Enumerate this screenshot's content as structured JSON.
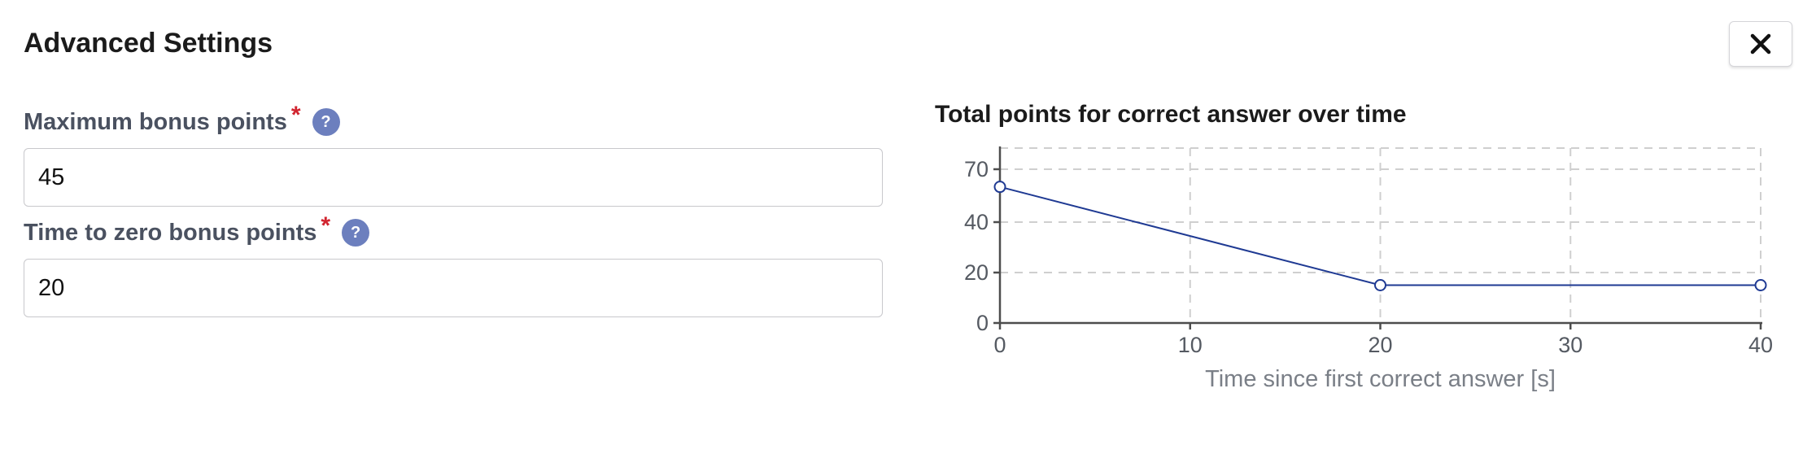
{
  "dialog": {
    "title": "Advanced Settings",
    "close_icon": "close-icon"
  },
  "fields": {
    "max_bonus": {
      "label": "Maximum bonus points",
      "required_mark": "*",
      "help_icon": "?",
      "value": "45"
    },
    "time_to_zero": {
      "label": "Time to zero bonus points",
      "required_mark": "*",
      "help_icon": "?",
      "value": "20"
    }
  },
  "colors": {
    "line": "#1f3a93",
    "grid": "#cfcfcf",
    "required": "#d1242f",
    "help_badge": "#6c7fbe"
  },
  "chart_data": {
    "type": "line",
    "title": "Total points for correct answer over time",
    "xlabel": "Time since first correct answer [s]",
    "ylabel": "",
    "x_ticks": [
      0,
      10,
      20,
      30,
      40
    ],
    "y_ticks": [
      0,
      20,
      40,
      70
    ],
    "xlim": [
      0,
      40
    ],
    "ylim": [
      0,
      70
    ],
    "grid": true,
    "series": [
      {
        "x": [
          0,
          20,
          40
        ],
        "y": [
          60,
          15,
          15
        ]
      }
    ]
  }
}
